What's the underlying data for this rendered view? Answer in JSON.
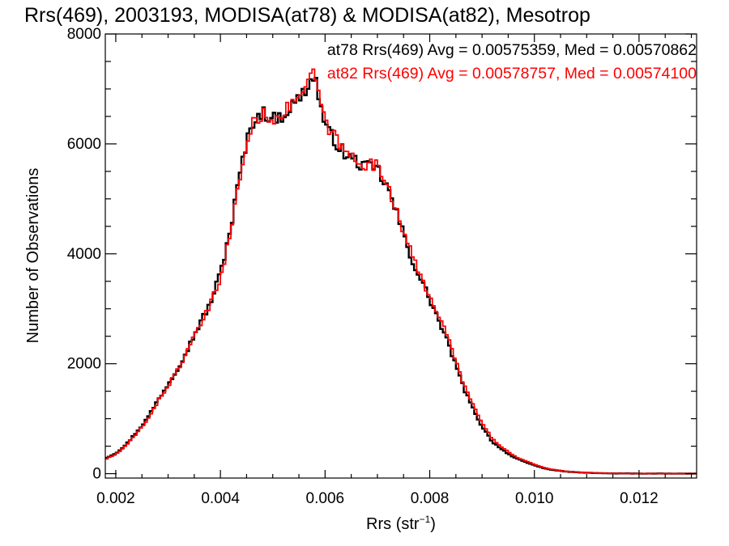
{
  "chart_data": {
    "type": "line",
    "title": "Rrs(469), 2003193, MODISA(at78) & MODISA(at82), Mesotrop",
    "xlabel_main": "Rrs (str",
    "xlabel_exp": "−1",
    "xlabel_close": ")",
    "ylabel": "Number of Observations",
    "xlim": [
      0.0018,
      0.0131
    ],
    "ylim": [
      -80,
      8000
    ],
    "x_ticks": [
      "0.002",
      "0.004",
      "0.006",
      "0.008",
      "0.010",
      "0.012"
    ],
    "y_ticks": [
      "0",
      "2000",
      "4000",
      "6000",
      "8000"
    ],
    "legend_position": "top-right",
    "annotations": [
      {
        "text": "at78 Rrs(469) Avg = 0.00575359, Med = 0.00570862",
        "color": "#000000"
      },
      {
        "text": "at82 Rrs(469) Avg = 0.00578757, Med = 0.00574100",
        "color": "#ff0000"
      }
    ],
    "step_width": 5e-05,
    "series": [
      {
        "color": "#000000",
        "x": [
          0.0018,
          0.002,
          0.0022,
          0.0024,
          0.0026,
          0.0028,
          0.003,
          0.0032,
          0.0034,
          0.0036,
          0.0038,
          0.004,
          0.0042,
          0.0044,
          0.0046,
          0.0048,
          0.005,
          0.0052,
          0.0054,
          0.0056,
          0.0058,
          0.006,
          0.0062,
          0.0064,
          0.0066,
          0.0068,
          0.007,
          0.0072,
          0.0074,
          0.0076,
          0.0078,
          0.008,
          0.0082,
          0.0084,
          0.0086,
          0.0088,
          0.009,
          0.0092,
          0.0094,
          0.0096,
          0.0098,
          0.01,
          0.0102,
          0.0104,
          0.0106,
          0.0108,
          0.011,
          0.0112,
          0.0114,
          0.0116,
          0.0118,
          0.012,
          0.0122,
          0.0124,
          0.0126,
          0.0128,
          0.013,
          0.0131
        ],
        "y": [
          280,
          370,
          530,
          760,
          1000,
          1330,
          1630,
          1950,
          2320,
          2720,
          3080,
          3650,
          4490,
          5600,
          6380,
          6580,
          6450,
          6520,
          6720,
          6950,
          7250,
          6300,
          6050,
          5780,
          5680,
          5570,
          5540,
          5180,
          4650,
          4050,
          3580,
          3180,
          2720,
          2250,
          1680,
          1230,
          860,
          580,
          430,
          300,
          220,
          155,
          95,
          62,
          38,
          26,
          16,
          10,
          6,
          4,
          3,
          2,
          1,
          1,
          0,
          0,
          0,
          0
        ]
      },
      {
        "color": "#ff0000",
        "x": [
          0.0018,
          0.002,
          0.0022,
          0.0024,
          0.0026,
          0.0028,
          0.003,
          0.0032,
          0.0034,
          0.0036,
          0.0038,
          0.004,
          0.0042,
          0.0044,
          0.0046,
          0.0048,
          0.005,
          0.0052,
          0.0054,
          0.0056,
          0.0058,
          0.006,
          0.0062,
          0.0064,
          0.0066,
          0.0068,
          0.007,
          0.0072,
          0.0074,
          0.0076,
          0.0078,
          0.008,
          0.0082,
          0.0084,
          0.0086,
          0.0088,
          0.009,
          0.0092,
          0.0094,
          0.0096,
          0.0098,
          0.01,
          0.0102,
          0.0104,
          0.0106,
          0.0108,
          0.011,
          0.0112,
          0.0114,
          0.0116,
          0.0118,
          0.012,
          0.0122,
          0.0124,
          0.0126,
          0.0128,
          0.013,
          0.0131
        ],
        "y": [
          260,
          350,
          510,
          730,
          980,
          1300,
          1600,
          1920,
          2280,
          2680,
          3040,
          3580,
          4400,
          5560,
          6340,
          6540,
          6470,
          6560,
          6760,
          7000,
          7300,
          6360,
          6120,
          5820,
          5740,
          5620,
          5590,
          5260,
          4720,
          4120,
          3620,
          3250,
          2830,
          2330,
          1760,
          1300,
          920,
          630,
          470,
          330,
          240,
          170,
          105,
          68,
          42,
          28,
          18,
          11,
          7,
          4,
          3,
          2,
          1,
          1,
          0,
          0,
          0,
          0
        ]
      }
    ]
  }
}
